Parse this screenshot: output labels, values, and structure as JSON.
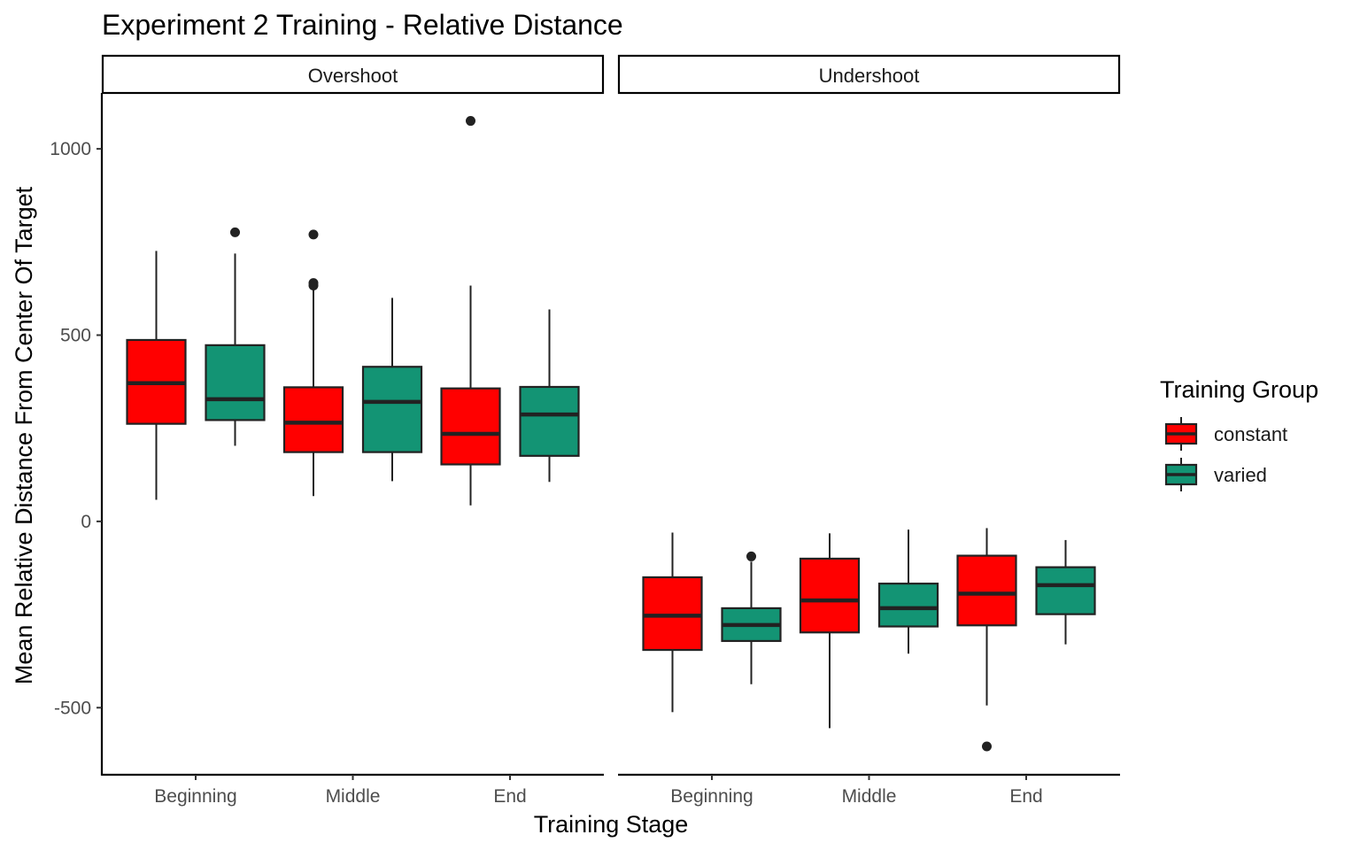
{
  "chart_data": {
    "type": "box",
    "title": "Experiment 2 Training - Relative Distance",
    "xlabel": "Training Stage",
    "ylabel": "Mean Relative Distance From Center Of Target",
    "categories": [
      "Beginning",
      "Middle",
      "End"
    ],
    "ylim": [
      -680,
      1150
    ],
    "yticks": [
      -500,
      0,
      500,
      1000
    ],
    "grid": false,
    "legend": {
      "title": "Training Group",
      "position": "right",
      "items": [
        {
          "name": "constant",
          "color": "#ff0000"
        },
        {
          "name": "varied",
          "color": "#139474"
        }
      ]
    },
    "panels": [
      {
        "name": "Overshoot",
        "boxes": [
          {
            "category": "Beginning",
            "group": "constant",
            "whisker_low": 58,
            "q1": 262,
            "median": 371,
            "q3": 487,
            "whisker_high": 726,
            "outliers": []
          },
          {
            "category": "Beginning",
            "group": "varied",
            "whisker_low": 203,
            "q1": 272,
            "median": 328,
            "q3": 473,
            "whisker_high": 719,
            "outliers": [
              776
            ]
          },
          {
            "category": "Middle",
            "group": "constant",
            "whisker_low": 68,
            "q1": 186,
            "median": 265,
            "q3": 360,
            "whisker_high": 626,
            "outliers": [
              640,
              633,
              770
            ]
          },
          {
            "category": "Middle",
            "group": "varied",
            "whisker_low": 108,
            "q1": 186,
            "median": 321,
            "q3": 415,
            "whisker_high": 600,
            "outliers": []
          },
          {
            "category": "End",
            "group": "constant",
            "whisker_low": 43,
            "q1": 153,
            "median": 235,
            "q3": 357,
            "whisker_high": 633,
            "outliers": [
              1075
            ]
          },
          {
            "category": "End",
            "group": "varied",
            "whisker_low": 106,
            "q1": 176,
            "median": 287,
            "q3": 361,
            "whisker_high": 569,
            "outliers": []
          }
        ]
      },
      {
        "name": "Undershoot",
        "boxes": [
          {
            "category": "Beginning",
            "group": "constant",
            "whisker_low": -512,
            "q1": -345,
            "median": -253,
            "q3": -150,
            "whisker_high": -30,
            "outliers": []
          },
          {
            "category": "Beginning",
            "group": "varied",
            "whisker_low": -437,
            "q1": -321,
            "median": -278,
            "q3": -233,
            "whisker_high": -108,
            "outliers": [
              -94
            ]
          },
          {
            "category": "Middle",
            "group": "constant",
            "whisker_low": -555,
            "q1": -298,
            "median": -212,
            "q3": -100,
            "whisker_high": -32,
            "outliers": []
          },
          {
            "category": "Middle",
            "group": "varied",
            "whisker_low": -355,
            "q1": -282,
            "median": -233,
            "q3": -167,
            "whisker_high": -22,
            "outliers": []
          },
          {
            "category": "End",
            "group": "constant",
            "whisker_low": -494,
            "q1": -279,
            "median": -194,
            "q3": -92,
            "whisker_high": -18,
            "outliers": [
              -604
            ]
          },
          {
            "category": "End",
            "group": "varied",
            "whisker_low": -330,
            "q1": -249,
            "median": -171,
            "q3": -123,
            "whisker_high": -50,
            "outliers": []
          }
        ]
      }
    ]
  }
}
